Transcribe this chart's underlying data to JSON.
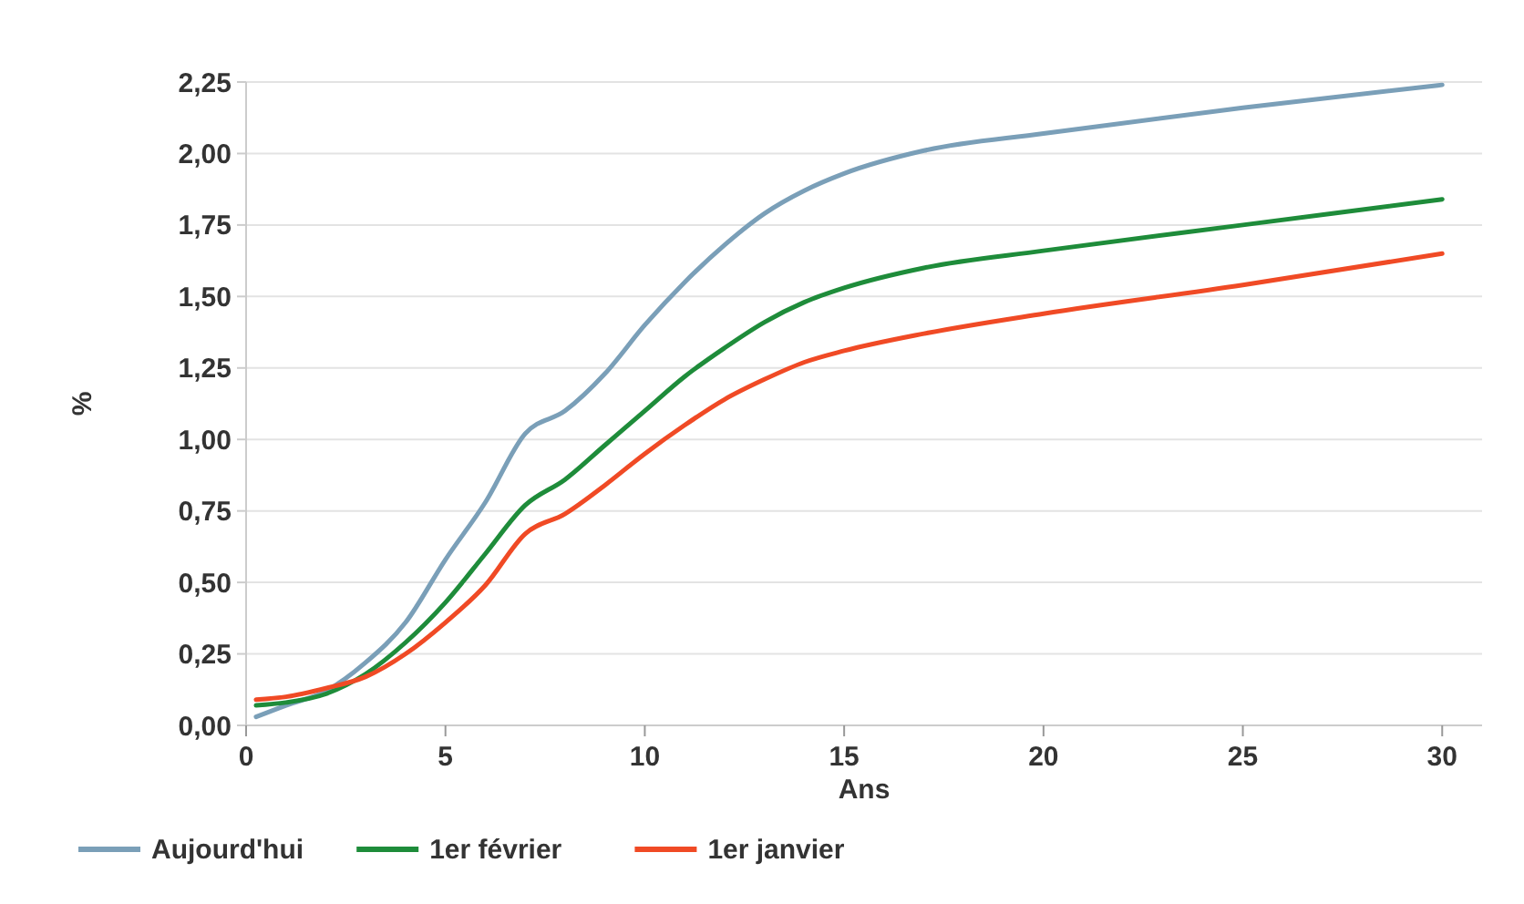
{
  "chart_data": {
    "type": "line",
    "xlabel": "Ans",
    "ylabel": "%",
    "xlim": [
      0,
      31
    ],
    "ylim": [
      0,
      2.25
    ],
    "xticks": [
      0,
      5,
      10,
      15,
      20,
      25,
      30
    ],
    "yticks": [
      {
        "value": 0,
        "label": "0,00"
      },
      {
        "value": 0.25,
        "label": "0,25"
      },
      {
        "value": 0.5,
        "label": "0,50"
      },
      {
        "value": 0.75,
        "label": "0,75"
      },
      {
        "value": 1,
        "label": "1,00"
      },
      {
        "value": 1.25,
        "label": "1,25"
      },
      {
        "value": 1.5,
        "label": "1,50"
      },
      {
        "value": 1.75,
        "label": "1,75"
      },
      {
        "value": 2,
        "label": "2,00"
      },
      {
        "value": 2.25,
        "label": "2,25"
      }
    ],
    "grid": "y",
    "legend": "bottom",
    "line_style": "solid",
    "marker": "none",
    "x": [
      0.25,
      1,
      2,
      3,
      4,
      5,
      6,
      7,
      8,
      9,
      10,
      11,
      12,
      13,
      14,
      15,
      17,
      20,
      25,
      30
    ],
    "series": [
      {
        "name": "Aujourd'hui",
        "color": "#7a9fb8",
        "values": [
          0.03,
          0.07,
          0.12,
          0.22,
          0.36,
          0.58,
          0.78,
          1.02,
          1.1,
          1.23,
          1.4,
          1.55,
          1.68,
          1.79,
          1.87,
          1.93,
          2.01,
          2.07,
          2.16,
          2.24
        ]
      },
      {
        "name": "1er février",
        "color": "#1e8c3a",
        "values": [
          0.07,
          0.08,
          0.11,
          0.18,
          0.29,
          0.43,
          0.6,
          0.77,
          0.86,
          0.98,
          1.1,
          1.22,
          1.32,
          1.41,
          1.48,
          1.53,
          1.6,
          1.66,
          1.75,
          1.84
        ]
      },
      {
        "name": "1er janvier",
        "color": "#f04a25",
        "values": [
          0.09,
          0.1,
          0.13,
          0.17,
          0.25,
          0.36,
          0.49,
          0.67,
          0.74,
          0.84,
          0.95,
          1.05,
          1.14,
          1.21,
          1.27,
          1.31,
          1.37,
          1.44,
          1.54,
          1.65
        ]
      }
    ]
  }
}
